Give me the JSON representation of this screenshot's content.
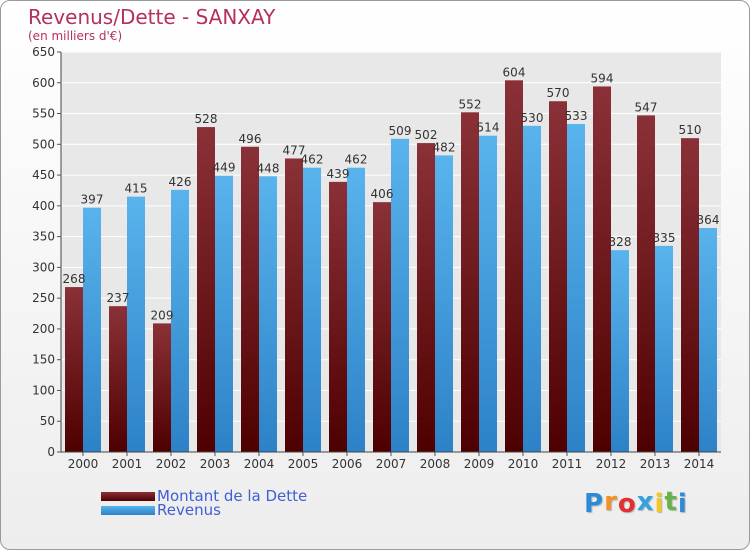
{
  "title": "Revenus/Dette - SANXAY",
  "subtitle": "(en milliers d'€)",
  "colors": {
    "dette_top": "#8a3138",
    "dette_bottom": "#4e0000",
    "revenus_top": "#59b3ec",
    "revenus_bottom": "#2d82c7",
    "grid": "#ffffff",
    "plot_background": "#e8e8e8",
    "title": "#b5305c",
    "legend_text": "#3f5fd4"
  },
  "legend": [
    {
      "label": "Montant de la Dette",
      "color": "#6e1e24"
    },
    {
      "label": "Revenus",
      "color": "#48a3e2"
    }
  ],
  "logo": {
    "letters": [
      "P",
      "r",
      "o",
      "x",
      "i",
      "t",
      "i"
    ],
    "colors": [
      "#2d8ad6",
      "#f0912a",
      "#e03030",
      "#35a3dd",
      "#f3c623",
      "#6ab04c",
      "#2d8ad6"
    ]
  },
  "chart_data": {
    "type": "bar",
    "categories": [
      "2000",
      "2001",
      "2002",
      "2003",
      "2004",
      "2005",
      "2006",
      "2007",
      "2008",
      "2009",
      "2010",
      "2011",
      "2012",
      "2013",
      "2014"
    ],
    "series": [
      {
        "name": "Montant de la Dette",
        "values": [
          268,
          237,
          209,
          528,
          496,
          477,
          439,
          406,
          502,
          552,
          604,
          570,
          594,
          547,
          510
        ]
      },
      {
        "name": "Revenus",
        "values": [
          397,
          415,
          426,
          449,
          448,
          462,
          462,
          509,
          482,
          514,
          530,
          533,
          328,
          335,
          364
        ]
      }
    ],
    "ylim": [
      0,
      650
    ],
    "ytick_step": 50,
    "grid": true,
    "legend_position": "bottom-left"
  }
}
